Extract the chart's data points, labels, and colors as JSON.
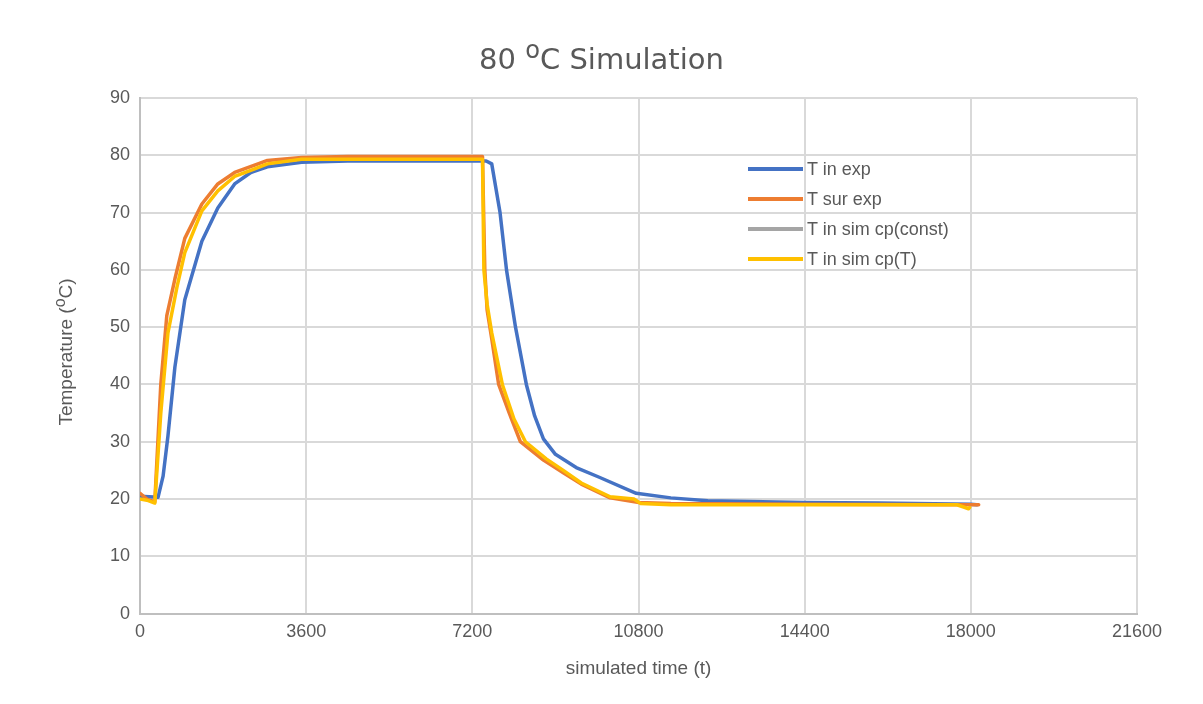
{
  "chart_data": {
    "type": "line",
    "title": "80 $^{o}$C Simulation",
    "xlabel": "simulated time (t)",
    "ylabel": "Temperature ($^{o}$C)",
    "xlim": [
      0,
      21600
    ],
    "xticks": [
      0,
      3600,
      7200,
      10800,
      14400,
      18000,
      21600
    ],
    "ylim": [
      0,
      90
    ],
    "yticks": [
      0,
      10,
      20,
      30,
      40,
      50,
      60,
      70,
      80,
      90
    ],
    "grid": true,
    "legend": "top right",
    "series": [
      {
        "name": "T in exp",
        "color": "#4472c4",
        "x": [
          0,
          200,
          390,
          500,
          605,
          755,
          970,
          1340,
          1685,
          2050,
          2400,
          2760,
          3500,
          4500,
          6000,
          7200,
          7500,
          7620,
          7800,
          7940,
          8135,
          8370,
          8550,
          8740,
          9000,
          9450,
          9950,
          10750,
          11500,
          12300,
          14400,
          16000,
          18000,
          18130
        ],
        "values": [
          20.5,
          20.4,
          20.3,
          24,
          31,
          43,
          54.8,
          65,
          70.8,
          75,
          77,
          78,
          78.8,
          79,
          79,
          79,
          79,
          78.5,
          70,
          60,
          50,
          40,
          34.5,
          30.5,
          27.8,
          25.5,
          23.8,
          21,
          20.2,
          19.7,
          19.4,
          19.3,
          19.1,
          19
        ]
      },
      {
        "name": "T sur exp",
        "color": "#ed7d31",
        "x": [
          0,
          150,
          320,
          450,
          580,
          755,
          970,
          1340,
          1685,
          2050,
          2760,
          3500,
          4500,
          6000,
          7200,
          7420,
          7470,
          7520,
          7620,
          7770,
          8000,
          8240,
          8740,
          9170,
          9560,
          10185,
          10810,
          11500,
          14400,
          18000,
          18170
        ],
        "values": [
          21,
          20,
          19.5,
          40,
          52,
          58.4,
          65.5,
          71.5,
          75,
          77,
          79.1,
          79.6,
          79.8,
          79.8,
          79.8,
          79.8,
          60,
          53,
          48,
          40,
          35,
          30,
          26.8,
          24.6,
          22.6,
          20.2,
          19.4,
          19.2,
          19.1,
          19,
          19
        ]
      },
      {
        "name": "T in sim cp(const)",
        "color": "#a5a5a5"
      },
      {
        "name": "T in sim cp(T)",
        "color": "#ffc000",
        "x": [
          0,
          150,
          320,
          450,
          605,
          800,
          970,
          1340,
          1685,
          2050,
          2760,
          3500,
          4500,
          6000,
          7200,
          7420,
          7450,
          7520,
          7620,
          7850,
          8100,
          8350,
          8800,
          9170,
          9560,
          10185,
          10700,
          10850,
          11500,
          14400,
          17700,
          17950,
          17975
        ],
        "values": [
          20,
          19.8,
          19.3,
          35,
          49,
          57,
          63,
          70.3,
          73.8,
          76.3,
          78.5,
          79.3,
          79.3,
          79.3,
          79.3,
          79.3,
          60,
          54,
          49,
          40,
          34,
          30,
          27,
          25,
          22.8,
          20.4,
          20,
          19.2,
          19,
          19,
          19,
          18.3,
          18.5
        ]
      }
    ]
  }
}
